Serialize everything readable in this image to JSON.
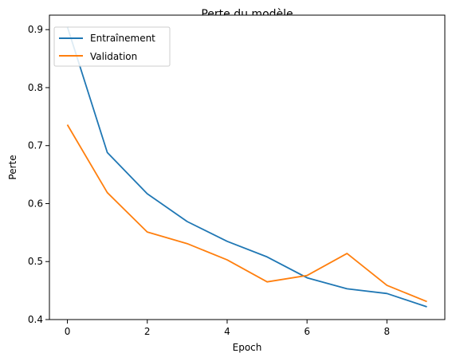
{
  "chart_data": {
    "type": "line",
    "title": "Perte du modèle",
    "xlabel": "Epoch",
    "ylabel": "Perte",
    "x": [
      0,
      1,
      2,
      3,
      4,
      5,
      6,
      7,
      8,
      9
    ],
    "xlim": [
      -0.45,
      9.45
    ],
    "ylim": [
      0.4,
      0.925
    ],
    "xticks": [
      0,
      2,
      4,
      6,
      8
    ],
    "yticks": [
      0.4,
      0.5,
      0.6,
      0.7,
      0.8,
      0.9
    ],
    "xtick_labels": [
      "0",
      "2",
      "4",
      "6",
      "8"
    ],
    "ytick_labels": [
      "0.4",
      "0.5",
      "0.6",
      "0.7",
      "0.8",
      "0.9"
    ],
    "grid": false,
    "legend_position": "top-left",
    "series": [
      {
        "name": "Entraînement",
        "color": "#1f77b4",
        "values": [
          0.905,
          0.688,
          0.617,
          0.569,
          0.535,
          0.508,
          0.472,
          0.453,
          0.445,
          0.422
        ]
      },
      {
        "name": "Validation",
        "color": "#ff7f0e",
        "values": [
          0.736,
          0.619,
          0.551,
          0.531,
          0.503,
          0.465,
          0.476,
          0.514,
          0.459,
          0.431
        ]
      }
    ]
  }
}
